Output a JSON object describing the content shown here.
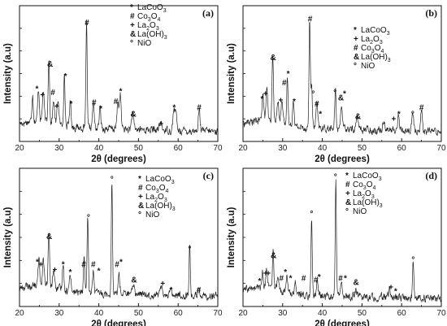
{
  "chart_data": [
    {
      "type": "line",
      "panel_label": "(a)",
      "xlabel": "2θ (degrees)",
      "ylabel": "Intensity (a.u)",
      "xlim": [
        20,
        70
      ],
      "xticks": [
        20,
        30,
        40,
        50,
        60,
        70
      ],
      "legend_position": "top-center",
      "legend": [
        {
          "symbol": "*",
          "text": "LaCoO",
          "sub": "3",
          "tail": ""
        },
        {
          "symbol": "#",
          "text": "Co",
          "sub": "3",
          "tail": "O",
          "sub2": "4"
        },
        {
          "symbol": "+",
          "text": "La",
          "sub": "2",
          "tail": "O",
          "sub2": "3"
        },
        {
          "symbol": "&",
          "text": "La(OH)",
          "sub": "3",
          "tail": ""
        },
        {
          "symbol": "°",
          "text": "NiO",
          "sub": "",
          "tail": ""
        }
      ],
      "baseline": 0.12,
      "peaks": [
        {
          "x": 23.3,
          "h": 0.22,
          "w": 0.25
        },
        {
          "x": 24.8,
          "h": 0.25,
          "w": 0.3
        },
        {
          "x": 26.0,
          "h": 0.24,
          "w": 0.3
        },
        {
          "x": 27.4,
          "h": 0.52,
          "w": 0.25
        },
        {
          "x": 28.6,
          "h": 0.18,
          "w": 0.3
        },
        {
          "x": 29.7,
          "h": 0.2,
          "w": 0.3
        },
        {
          "x": 31.3,
          "h": 0.4,
          "w": 0.25
        },
        {
          "x": 32.8,
          "h": 0.2,
          "w": 0.3
        },
        {
          "x": 36.9,
          "h": 0.85,
          "w": 0.22
        },
        {
          "x": 38.6,
          "h": 0.2,
          "w": 0.3
        },
        {
          "x": 40.3,
          "h": 0.16,
          "w": 0.3
        },
        {
          "x": 44.8,
          "h": 0.22,
          "w": 0.3
        },
        {
          "x": 45.4,
          "h": 0.28,
          "w": 0.3
        },
        {
          "x": 48.5,
          "h": 0.12,
          "w": 0.35
        },
        {
          "x": 55.6,
          "h": 0.06,
          "w": 0.4
        },
        {
          "x": 58.9,
          "h": 0.16,
          "w": 0.3
        },
        {
          "x": 59.4,
          "h": 0.15,
          "w": 0.3
        },
        {
          "x": 65.3,
          "h": 0.17,
          "w": 0.3
        }
      ],
      "markers": [
        {
          "x": 24.4,
          "y": 0.4,
          "s": "*"
        },
        {
          "x": 25.8,
          "y": 0.35,
          "s": "+"
        },
        {
          "x": 27.7,
          "y": 0.6,
          "s": "&"
        },
        {
          "x": 28.4,
          "y": 0.37,
          "s": "#"
        },
        {
          "x": 29.4,
          "y": 0.26,
          "s": "+"
        },
        {
          "x": 31.6,
          "y": 0.5,
          "s": "*"
        },
        {
          "x": 33.0,
          "y": 0.28,
          "s": "*"
        },
        {
          "x": 37.0,
          "y": 0.93,
          "s": "#"
        },
        {
          "x": 38.8,
          "y": 0.29,
          "s": "#"
        },
        {
          "x": 40.5,
          "y": 0.24,
          "s": "*"
        },
        {
          "x": 44.3,
          "y": 0.3,
          "s": "#"
        },
        {
          "x": 45.5,
          "y": 0.38,
          "s": "*"
        },
        {
          "x": 48.7,
          "y": 0.2,
          "s": "&"
        },
        {
          "x": 55.7,
          "y": 0.12,
          "s": "+"
        },
        {
          "x": 59.0,
          "y": 0.25,
          "s": "*"
        },
        {
          "x": 65.3,
          "y": 0.25,
          "s": "#"
        }
      ]
    },
    {
      "type": "line",
      "panel_label": "(b)",
      "xlabel": "2θ (degrees)",
      "ylabel": "Intensity (a.u)",
      "xlim": [
        20,
        70
      ],
      "xticks": [
        20,
        30,
        40,
        50,
        60,
        70
      ],
      "legend_position": "top-right",
      "legend": [
        {
          "symbol": "*",
          "text": "LaCoO",
          "sub": "3",
          "tail": ""
        },
        {
          "symbol": "+",
          "text": "La",
          "sub": "2",
          "tail": "O",
          "sub2": "3"
        },
        {
          "symbol": "#",
          "text": "Co",
          "sub": "3",
          "tail": "O",
          "sub2": "4"
        },
        {
          "symbol": "&",
          "text": "La(OH)",
          "sub": "3",
          "tail": ""
        },
        {
          "symbol": "°",
          "text": "NiO",
          "sub": "",
          "tail": ""
        }
      ],
      "baseline": 0.12,
      "peaks": [
        {
          "x": 25.0,
          "h": 0.22,
          "w": 0.3
        },
        {
          "x": 26.0,
          "h": 0.25,
          "w": 0.3
        },
        {
          "x": 27.5,
          "h": 0.55,
          "w": 0.25
        },
        {
          "x": 28.8,
          "h": 0.2,
          "w": 0.3
        },
        {
          "x": 29.8,
          "h": 0.22,
          "w": 0.3
        },
        {
          "x": 31.2,
          "h": 0.4,
          "w": 0.25
        },
        {
          "x": 32.7,
          "h": 0.22,
          "w": 0.3
        },
        {
          "x": 36.8,
          "h": 0.88,
          "w": 0.22
        },
        {
          "x": 37.3,
          "h": 0.35,
          "w": 0.25
        },
        {
          "x": 38.6,
          "h": 0.2,
          "w": 0.3
        },
        {
          "x": 43.3,
          "h": 0.3,
          "w": 0.25
        },
        {
          "x": 44.8,
          "h": 0.2,
          "w": 0.3
        },
        {
          "x": 48.8,
          "h": 0.1,
          "w": 0.35
        },
        {
          "x": 55.5,
          "h": 0.08,
          "w": 0.4
        },
        {
          "x": 59.2,
          "h": 0.12,
          "w": 0.3
        },
        {
          "x": 62.8,
          "h": 0.14,
          "w": 0.3
        },
        {
          "x": 65.0,
          "h": 0.17,
          "w": 0.3
        }
      ],
      "markers": [
        {
          "x": 24.8,
          "y": 0.32,
          "s": "*"
        },
        {
          "x": 25.7,
          "y": 0.36,
          "s": "+"
        },
        {
          "x": 27.6,
          "y": 0.65,
          "s": "&"
        },
        {
          "x": 29.5,
          "y": 0.31,
          "s": "+"
        },
        {
          "x": 30.4,
          "y": 0.45,
          "s": "#"
        },
        {
          "x": 31.4,
          "y": 0.52,
          "s": "*"
        },
        {
          "x": 32.9,
          "y": 0.3,
          "s": "*"
        },
        {
          "x": 36.9,
          "y": 0.96,
          "s": "#"
        },
        {
          "x": 37.7,
          "y": 0.36,
          "s": "°"
        },
        {
          "x": 38.6,
          "y": 0.28,
          "s": "#"
        },
        {
          "x": 39.5,
          "y": 0.2,
          "s": "*"
        },
        {
          "x": 43.2,
          "y": 0.37,
          "s": "°"
        },
        {
          "x": 44.7,
          "y": 0.33,
          "s": "&"
        },
        {
          "x": 45.6,
          "y": 0.36,
          "s": "*"
        },
        {
          "x": 49.0,
          "y": 0.18,
          "s": "&"
        },
        {
          "x": 58.0,
          "y": 0.16,
          "s": "+"
        },
        {
          "x": 59.3,
          "y": 0.2,
          "s": "*"
        },
        {
          "x": 62.8,
          "y": 0.2,
          "s": "°"
        },
        {
          "x": 65.0,
          "y": 0.25,
          "s": "#"
        }
      ]
    },
    {
      "type": "line",
      "panel_label": "(c)",
      "xlabel": "2θ (degrees)",
      "ylabel": "Intensity (a.u)",
      "xlim": [
        20,
        70
      ],
      "xticks": [
        20,
        30,
        40,
        50,
        60,
        70
      ],
      "legend_position": "top-right",
      "legend": [
        {
          "symbol": "*",
          "text": "LaCoO",
          "sub": "3",
          "tail": ""
        },
        {
          "symbol": "#",
          "text": "Co",
          "sub": "3",
          "tail": "O",
          "sub2": "4"
        },
        {
          "symbol": "+",
          "text": "La",
          "sub": "2",
          "tail": "O",
          "sub2": "3"
        },
        {
          "symbol": "&",
          "text": "La(OH)",
          "sub": "3",
          "tail": ""
        },
        {
          "symbol": "°",
          "text": "NiO",
          "sub": "",
          "tail": ""
        }
      ],
      "baseline": 0.12,
      "peaks": [
        {
          "x": 24.9,
          "h": 0.2,
          "w": 0.3
        },
        {
          "x": 26.0,
          "h": 0.22,
          "w": 0.3
        },
        {
          "x": 27.4,
          "h": 0.42,
          "w": 0.25
        },
        {
          "x": 28.6,
          "h": 0.15,
          "w": 0.3
        },
        {
          "x": 31.0,
          "h": 0.2,
          "w": 0.3
        },
        {
          "x": 32.8,
          "h": 0.15,
          "w": 0.3
        },
        {
          "x": 36.3,
          "h": 0.28,
          "w": 0.25
        },
        {
          "x": 37.2,
          "h": 0.58,
          "w": 0.22
        },
        {
          "x": 38.6,
          "h": 0.17,
          "w": 0.3
        },
        {
          "x": 43.3,
          "h": 0.88,
          "w": 0.22
        },
        {
          "x": 45.1,
          "h": 0.15,
          "w": 0.3
        },
        {
          "x": 48.8,
          "h": 0.08,
          "w": 0.35
        },
        {
          "x": 55.9,
          "h": 0.07,
          "w": 0.4
        },
        {
          "x": 58.1,
          "h": 0.08,
          "w": 0.3
        },
        {
          "x": 62.9,
          "h": 0.4,
          "w": 0.22
        },
        {
          "x": 65.2,
          "h": 0.08,
          "w": 0.3
        }
      ],
      "markers": [
        {
          "x": 24.5,
          "y": 0.33,
          "s": "*"
        },
        {
          "x": 25.4,
          "y": 0.31,
          "s": "+"
        },
        {
          "x": 27.5,
          "y": 0.53,
          "s": "&"
        },
        {
          "x": 28.9,
          "y": 0.27,
          "s": "+"
        },
        {
          "x": 31.0,
          "y": 0.31,
          "s": "*"
        },
        {
          "x": 32.8,
          "y": 0.25,
          "s": "*"
        },
        {
          "x": 36.2,
          "y": 0.31,
          "s": "#"
        },
        {
          "x": 37.4,
          "y": 0.68,
          "s": "°"
        },
        {
          "x": 38.6,
          "y": 0.31,
          "s": "#"
        },
        {
          "x": 40.0,
          "y": 0.26,
          "s": "*"
        },
        {
          "x": 43.3,
          "y": 0.98,
          "s": "°"
        },
        {
          "x": 44.6,
          "y": 0.31,
          "s": "#"
        },
        {
          "x": 45.6,
          "y": 0.33,
          "s": "*"
        },
        {
          "x": 48.9,
          "y": 0.19,
          "s": "&"
        },
        {
          "x": 56.1,
          "y": 0.16,
          "s": "+"
        },
        {
          "x": 58.2,
          "y": 0.11,
          "s": "*"
        },
        {
          "x": 62.9,
          "y": 0.43,
          "s": "°"
        },
        {
          "x": 65.2,
          "y": 0.11,
          "s": "#"
        }
      ]
    },
    {
      "type": "line",
      "panel_label": "(d)",
      "xlabel": "2θ (degrees)",
      "ylabel": "Intensity (a.u)",
      "xlim": [
        20,
        70
      ],
      "xticks": [
        20,
        30,
        40,
        50,
        60,
        70
      ],
      "legend_position": "top-center",
      "legend": [
        {
          "symbol": "*",
          "text": "LaCoO",
          "sub": "3",
          "tail": ""
        },
        {
          "symbol": "#",
          "text": "Co",
          "sub": "3",
          "tail": "O",
          "sub2": "4"
        },
        {
          "symbol": "+",
          "text": "La",
          "sub": "2",
          "tail": "O",
          "sub2": "3"
        },
        {
          "symbol": "&",
          "text": "La(OH)",
          "sub": "3",
          "tail": ""
        },
        {
          "symbol": "°",
          "text": "NiO",
          "sub": "",
          "tail": ""
        }
      ],
      "baseline": 0.1,
      "peaks": [
        {
          "x": 24.9,
          "h": 0.12,
          "w": 0.3
        },
        {
          "x": 26.0,
          "h": 0.15,
          "w": 0.3
        },
        {
          "x": 27.6,
          "h": 0.28,
          "w": 0.25
        },
        {
          "x": 28.8,
          "h": 0.12,
          "w": 0.3
        },
        {
          "x": 31.1,
          "h": 0.13,
          "w": 0.3
        },
        {
          "x": 33.2,
          "h": 0.1,
          "w": 0.3
        },
        {
          "x": 37.3,
          "h": 0.6,
          "w": 0.22
        },
        {
          "x": 38.7,
          "h": 0.12,
          "w": 0.3
        },
        {
          "x": 43.4,
          "h": 0.9,
          "w": 0.22
        },
        {
          "x": 44.8,
          "h": 0.1,
          "w": 0.3
        },
        {
          "x": 48.5,
          "h": 0.06,
          "w": 0.35
        },
        {
          "x": 57.0,
          "h": 0.06,
          "w": 0.4
        },
        {
          "x": 62.9,
          "h": 0.3,
          "w": 0.22
        }
      ],
      "markers": [
        {
          "x": 24.2,
          "y": 0.18,
          "s": "*"
        },
        {
          "x": 25.7,
          "y": 0.24,
          "s": "+"
        },
        {
          "x": 26.4,
          "y": 0.24,
          "s": "+"
        },
        {
          "x": 27.7,
          "y": 0.38,
          "s": "&"
        },
        {
          "x": 29.7,
          "y": 0.2,
          "s": "#"
        },
        {
          "x": 30.7,
          "y": 0.25,
          "s": "*"
        },
        {
          "x": 32.0,
          "y": 0.2,
          "s": "*"
        },
        {
          "x": 35.3,
          "y": 0.2,
          "s": "#"
        },
        {
          "x": 37.3,
          "y": 0.71,
          "s": "°"
        },
        {
          "x": 38.4,
          "y": 0.19,
          "s": "#"
        },
        {
          "x": 39.2,
          "y": 0.21,
          "s": "*"
        },
        {
          "x": 43.3,
          "y": 1.0,
          "s": "°"
        },
        {
          "x": 44.6,
          "y": 0.2,
          "s": "#"
        },
        {
          "x": 45.8,
          "y": 0.2,
          "s": "*"
        },
        {
          "x": 48.5,
          "y": 0.17,
          "s": "&"
        },
        {
          "x": 57.3,
          "y": 0.13,
          "s": "+"
        },
        {
          "x": 58.5,
          "y": 0.1,
          "s": "*"
        },
        {
          "x": 62.9,
          "y": 0.35,
          "s": "°"
        }
      ]
    }
  ]
}
